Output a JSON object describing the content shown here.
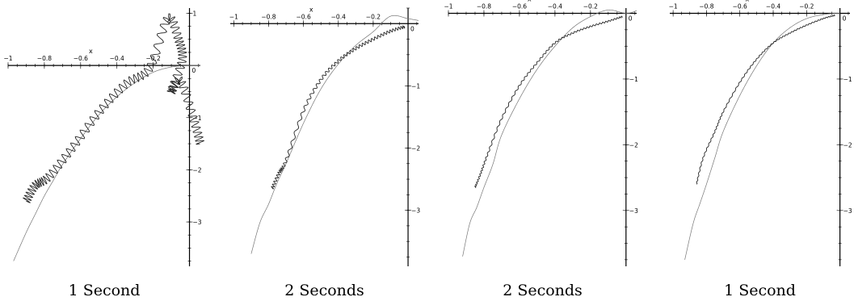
{
  "chart_data": [
    {
      "type": "line",
      "caption": "1 Second",
      "xlabel": "x",
      "x_ticks": [
        "−1",
        "−0.8",
        "−0.6",
        "−0.4",
        "−0.2",
        "0"
      ],
      "y_ticks": [
        "1",
        "−1",
        "−2",
        "−3"
      ],
      "xlim": [
        -1.0,
        0.06
      ],
      "ylim": [
        -3.85,
        1.1
      ],
      "series": [
        {
          "role": "reference",
          "x": [
            -0.97,
            -0.9,
            -0.85,
            -0.8,
            -0.75,
            -0.7,
            -0.6,
            -0.5,
            -0.4,
            -0.3,
            -0.2,
            -0.1,
            0.0,
            0.06
          ],
          "y": [
            -3.75,
            -3.2,
            -2.85,
            -2.5,
            -2.2,
            -1.9,
            -1.4,
            -0.95,
            -0.6,
            -0.33,
            -0.13,
            -0.03,
            0.0,
            0.0
          ]
        },
        {
          "role": "approximation",
          "x": [
            -0.9,
            -0.85,
            -0.78,
            -0.65,
            -0.5,
            -0.35,
            -0.22,
            -0.12,
            -0.06,
            -0.04,
            -0.1,
            -0.05,
            0.02,
            0.06
          ],
          "y": [
            -2.6,
            -2.3,
            -2.15,
            -1.6,
            -0.9,
            -0.35,
            -0.05,
            0.9,
            0.5,
            0.1,
            -0.5,
            -0.3,
            -1.0,
            -1.5
          ],
          "oscillation": 0.09
        }
      ]
    },
    {
      "type": "line",
      "caption": "2 Seconds",
      "xlabel": "x",
      "x_ticks": [
        "−1",
        "−0.8",
        "−0.6",
        "−0.4",
        "−0.2",
        "0"
      ],
      "y_ticks": [
        "−1",
        "−2",
        "−3"
      ],
      "xlim": [
        -1.02,
        0.06
      ],
      "ylim": [
        -3.9,
        0.25
      ],
      "series": [
        {
          "role": "reference",
          "x": [
            -0.9,
            -0.85,
            -0.8,
            -0.75,
            -0.7,
            -0.6,
            -0.5,
            -0.4,
            -0.3,
            -0.2,
            -0.1,
            0.0,
            0.06
          ],
          "y": [
            -3.7,
            -3.2,
            -2.9,
            -2.55,
            -2.25,
            -1.6,
            -1.05,
            -0.65,
            -0.35,
            -0.13,
            0.12,
            0.08,
            0.05
          ]
        },
        {
          "role": "approximation",
          "x": [
            -0.78,
            -0.74,
            -0.7,
            -0.6,
            -0.5,
            -0.4,
            -0.3,
            -0.2,
            -0.1,
            -0.02
          ],
          "y": [
            -2.65,
            -2.4,
            -2.2,
            -1.4,
            -0.9,
            -0.6,
            -0.4,
            -0.25,
            -0.12,
            -0.05
          ],
          "oscillation": 0.03
        }
      ]
    },
    {
      "type": "line",
      "caption": "2 Seconds",
      "xlabel": "x",
      "x_ticks": [
        "−1",
        "−0.8",
        "−0.6",
        "−0.4",
        "−0.2",
        "0"
      ],
      "y_ticks": [
        "−1",
        "−2",
        "−3"
      ],
      "xlim": [
        -1.0,
        0.06
      ],
      "ylim": [
        -3.85,
        0.08
      ],
      "series": [
        {
          "role": "reference",
          "x": [
            -0.92,
            -0.88,
            -0.84,
            -0.8,
            -0.75,
            -0.7,
            -0.6,
            -0.5,
            -0.4,
            -0.3,
            -0.2,
            -0.1,
            0.0,
            0.06
          ],
          "y": [
            -3.7,
            -3.2,
            -2.95,
            -2.65,
            -2.3,
            -1.85,
            -1.3,
            -0.85,
            -0.5,
            -0.22,
            -0.05,
            0.05,
            0.0,
            0.04
          ]
        },
        {
          "role": "approximation",
          "x": [
            -0.85,
            -0.82,
            -0.78,
            -0.7,
            -0.6,
            -0.5,
            -0.4,
            -0.3,
            -0.2,
            -0.1,
            -0.02
          ],
          "y": [
            -2.65,
            -2.45,
            -2.15,
            -1.6,
            -1.1,
            -0.75,
            -0.45,
            -0.3,
            -0.2,
            -0.12,
            -0.05
          ],
          "oscillation": 0.015
        }
      ]
    },
    {
      "type": "line",
      "caption": "1 Second",
      "xlabel": "x",
      "x_ticks": [
        "−1",
        "−0.8",
        "−0.6",
        "−0.4",
        "−0.2",
        "0"
      ],
      "y_ticks": [
        "−1",
        "−2",
        "−3"
      ],
      "xlim": [
        -1.02,
        0.06
      ],
      "ylim": [
        -3.85,
        0.08
      ],
      "series": [
        {
          "role": "reference",
          "x": [
            -0.93,
            -0.88,
            -0.84,
            -0.8,
            -0.75,
            -0.7,
            -0.6,
            -0.5,
            -0.4,
            -0.3,
            -0.2,
            -0.1,
            -0.03,
            0.0
          ],
          "y": [
            -3.75,
            -3.2,
            -2.9,
            -2.6,
            -2.2,
            -1.8,
            -1.25,
            -0.8,
            -0.45,
            -0.22,
            -0.08,
            -0.02,
            0.0,
            0.0
          ]
        },
        {
          "role": "approximation",
          "x": [
            -0.86,
            -0.82,
            -0.75,
            -0.7,
            -0.6,
            -0.5,
            -0.4,
            -0.3,
            -0.2,
            -0.1,
            -0.03
          ],
          "y": [
            -2.6,
            -2.2,
            -1.8,
            -1.5,
            -1.05,
            -0.7,
            -0.45,
            -0.3,
            -0.18,
            -0.08,
            -0.03
          ],
          "oscillation": 0.01
        }
      ]
    }
  ],
  "colors": {
    "reference": "#808080",
    "approximation": "#262626",
    "axis": "#000000"
  }
}
